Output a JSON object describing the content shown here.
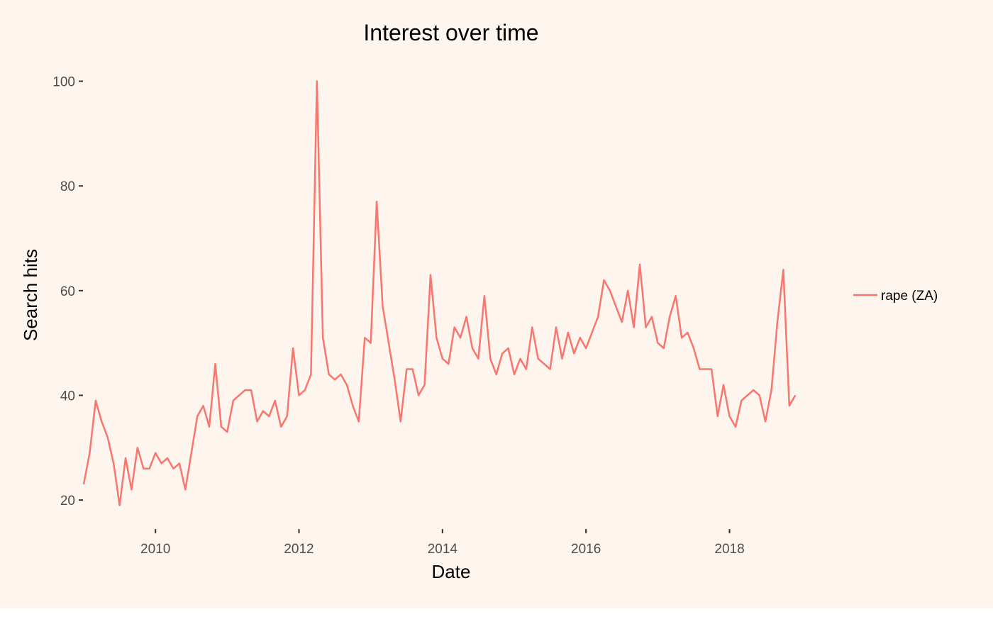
{
  "chart_data": {
    "type": "line",
    "title": "Interest over time",
    "xlabel": "Date",
    "ylabel": "Search hits",
    "xlim": [
      "2009-01-01",
      "2019-04-01"
    ],
    "ylim": [
      15,
      104
    ],
    "x_ticks": [
      "2010",
      "2012",
      "2014",
      "2016",
      "2018"
    ],
    "y_ticks": [
      "20",
      "40",
      "60",
      "80",
      "100"
    ],
    "grid": false,
    "legend": "right",
    "colors": {
      "series": "#f8766d",
      "panel": "#fff5ef"
    },
    "series": [
      {
        "name": "rape (ZA)",
        "x": [
          "2009-01",
          "2009-02",
          "2009-03",
          "2009-04",
          "2009-05",
          "2009-06",
          "2009-07",
          "2009-08",
          "2009-09",
          "2009-10",
          "2009-11",
          "2009-12",
          "2010-01",
          "2010-02",
          "2010-03",
          "2010-04",
          "2010-05",
          "2010-06",
          "2010-07",
          "2010-08",
          "2010-09",
          "2010-10",
          "2010-11",
          "2010-12",
          "2011-01",
          "2011-02",
          "2011-03",
          "2011-04",
          "2011-05",
          "2011-06",
          "2011-07",
          "2011-08",
          "2011-09",
          "2011-10",
          "2011-11",
          "2011-12",
          "2012-01",
          "2012-02",
          "2012-03",
          "2012-04",
          "2012-05",
          "2012-06",
          "2012-07",
          "2012-08",
          "2012-09",
          "2012-10",
          "2012-11",
          "2012-12",
          "2013-01",
          "2013-02",
          "2013-03",
          "2013-04",
          "2013-05",
          "2013-06",
          "2013-07",
          "2013-08",
          "2013-09",
          "2013-10",
          "2013-11",
          "2013-12",
          "2014-01",
          "2014-02",
          "2014-03",
          "2014-04",
          "2014-05",
          "2014-06",
          "2014-07",
          "2014-08",
          "2014-09",
          "2014-10",
          "2014-11",
          "2014-12",
          "2015-01",
          "2015-02",
          "2015-03",
          "2015-04",
          "2015-05",
          "2015-06",
          "2015-07",
          "2015-08",
          "2015-09",
          "2015-10",
          "2015-11",
          "2015-12",
          "2016-01",
          "2016-02",
          "2016-03",
          "2016-04",
          "2016-05",
          "2016-06",
          "2016-07",
          "2016-08",
          "2016-09",
          "2016-10",
          "2016-11",
          "2016-12",
          "2017-01",
          "2017-02",
          "2017-03",
          "2017-04",
          "2017-05",
          "2017-06",
          "2017-07",
          "2017-08",
          "2017-09",
          "2017-10",
          "2017-11",
          "2017-12",
          "2018-01",
          "2018-02",
          "2018-03",
          "2018-04",
          "2018-05",
          "2018-06",
          "2018-07",
          "2018-08",
          "2018-09",
          "2018-10",
          "2018-11",
          "2018-12"
        ],
        "values": [
          23,
          29,
          39,
          35,
          32,
          27,
          19,
          28,
          22,
          30,
          26,
          26,
          29,
          27,
          28,
          26,
          27,
          22,
          29,
          36,
          38,
          34,
          46,
          34,
          33,
          39,
          40,
          41,
          41,
          35,
          37,
          36,
          39,
          34,
          36,
          49,
          40,
          41,
          44,
          100,
          51,
          44,
          43,
          44,
          42,
          38,
          35,
          51,
          50,
          77,
          57,
          50,
          43,
          35,
          45,
          45,
          40,
          42,
          63,
          51,
          47,
          46,
          53,
          51,
          55,
          49,
          47,
          59,
          47,
          44,
          48,
          49,
          44,
          47,
          45,
          53,
          47,
          46,
          45,
          53,
          47,
          52,
          48,
          51,
          49,
          52,
          55,
          62,
          60,
          57,
          54,
          60,
          53,
          65,
          53,
          55,
          50,
          49,
          55,
          59,
          51,
          52,
          49,
          45,
          45,
          45,
          36,
          42,
          36,
          34,
          39,
          40,
          41,
          40,
          35,
          41,
          54,
          64,
          38,
          40
        ]
      }
    ]
  }
}
